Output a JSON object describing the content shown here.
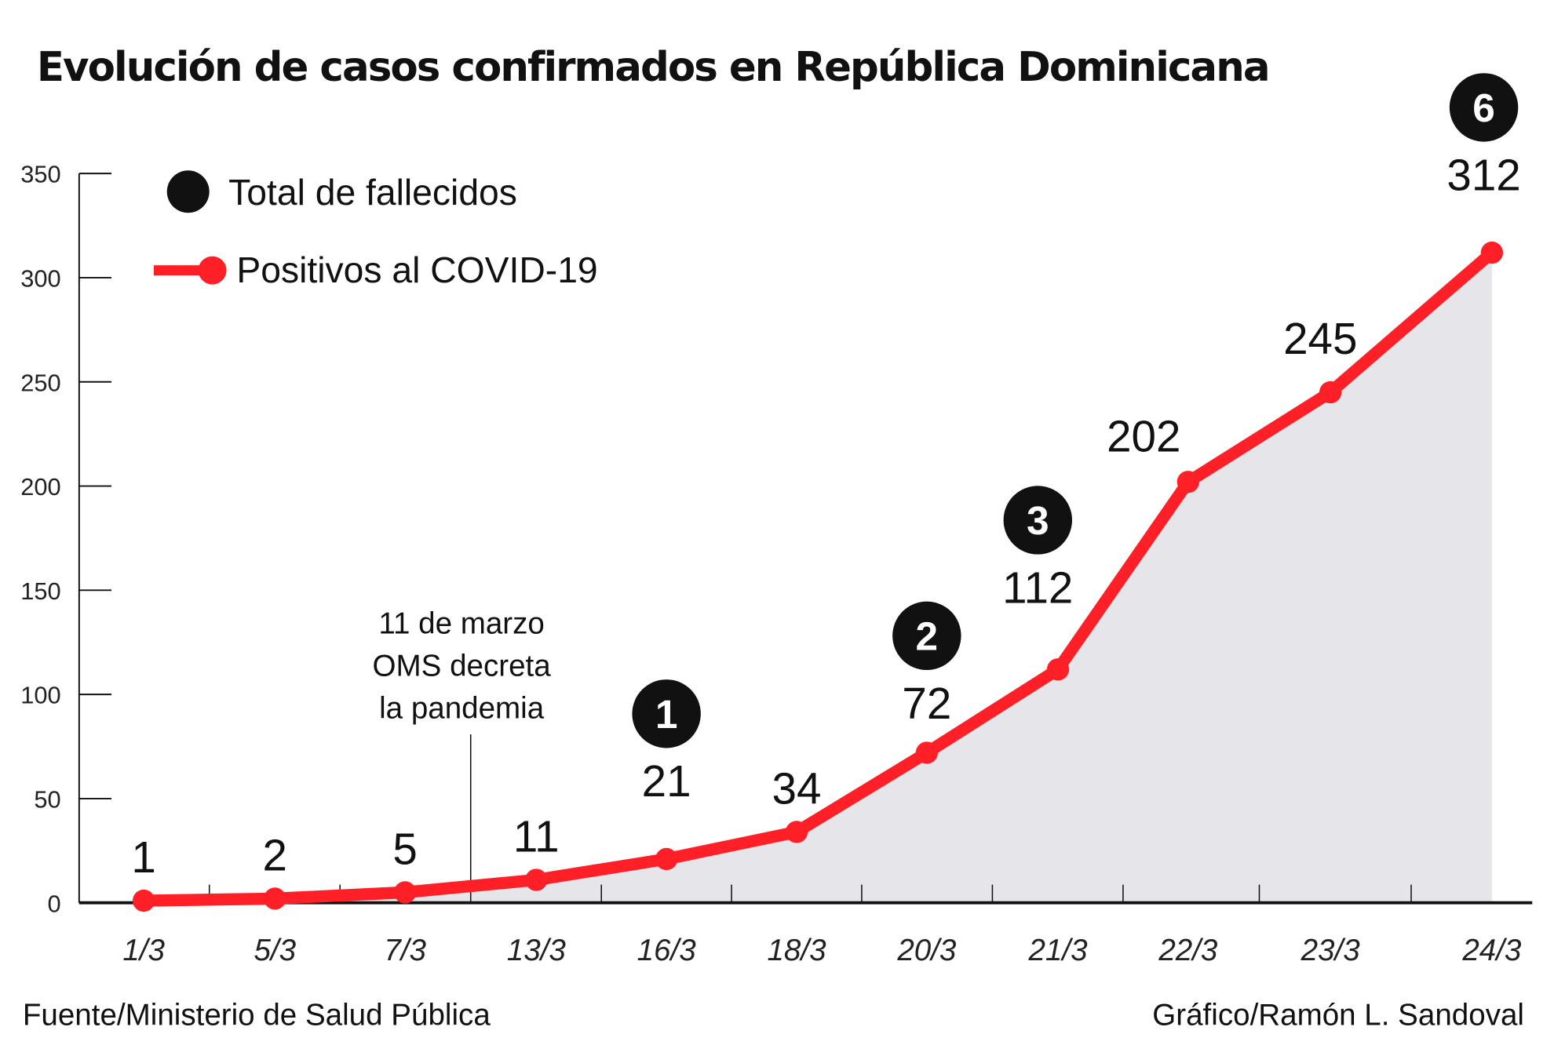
{
  "chart_data": {
    "type": "line",
    "title": "Evolución de casos confirmados en República Dominicana",
    "categories": [
      "1/3",
      "5/3",
      "7/3",
      "13/3",
      "16/3",
      "18/3",
      "20/3",
      "21/3",
      "22/3",
      "23/3",
      "24/3"
    ],
    "series": [
      {
        "name": "Positivos al COVID-19",
        "values": [
          1,
          2,
          5,
          11,
          21,
          34,
          72,
          112,
          202,
          245,
          312
        ],
        "color": "#ff1f26"
      },
      {
        "name": "Total de fallecidos",
        "values": [
          null,
          null,
          null,
          null,
          1,
          null,
          2,
          3,
          null,
          null,
          6
        ],
        "color": "#111111"
      }
    ],
    "yticks": [
      0,
      50,
      100,
      150,
      200,
      250,
      300,
      350
    ],
    "ylim": [
      0,
      350
    ],
    "legend_placement": "top-left",
    "area_fill": "#e6e6ea",
    "annotation": {
      "lines": [
        "11 de marzo",
        "OMS decreta",
        "la pandemia"
      ],
      "between": [
        "7/3",
        "13/3"
      ]
    }
  },
  "footer": {
    "source": "Fuente/Ministerio de Salud Pública",
    "credit": "Gráfico/Ramón L. Sandoval"
  }
}
